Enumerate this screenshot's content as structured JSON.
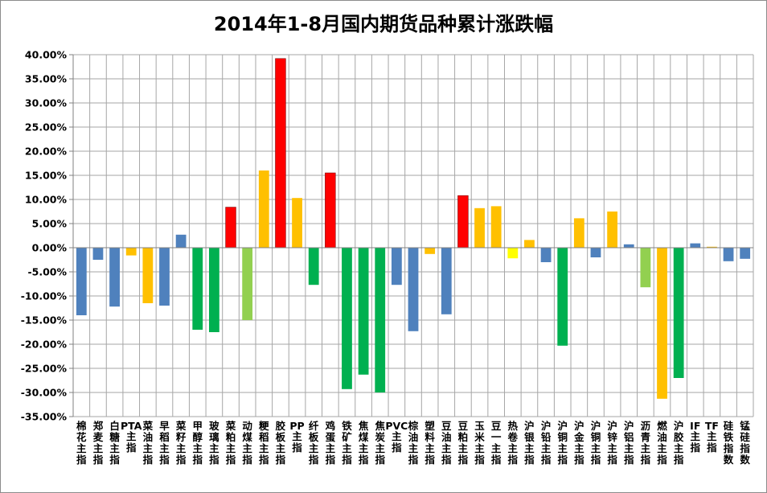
{
  "chart_data": {
    "type": "bar",
    "title": "2014年1-8月国内期货品种累计涨跌幅",
    "xlabel": "",
    "ylabel": "",
    "ylim": [
      -35,
      40
    ],
    "yticks": [
      40,
      35,
      30,
      25,
      20,
      15,
      10,
      5,
      0,
      -5,
      -10,
      -15,
      -20,
      -25,
      -30,
      -35
    ],
    "ytick_labels": [
      "40.00%",
      "35.00%",
      "30.00%",
      "25.00%",
      "20.00%",
      "15.00%",
      "10.00%",
      "5.00%",
      "0.00%",
      "-5.00%",
      "-10.00%",
      "-15.00%",
      "-20.00%",
      "-25.00%",
      "-30.00%",
      "-35.00%"
    ],
    "grid": true,
    "legend": "none",
    "categories": [
      "棉花主指",
      "郑麦主指",
      "白糖主指",
      "PTA主指",
      "菜油主指",
      "早稻主指",
      "菜籽主指",
      "甲醇主指",
      "玻璃主指",
      "菜粕主指",
      "动煤主指",
      "粳稻主指",
      "胶板主指",
      "PP主指",
      "纤板主指",
      "鸡蛋主指",
      "铁矿主指",
      "焦煤主指",
      "焦炭主指",
      "PVC主指",
      "棕油主指",
      "塑料主指",
      "豆油主指",
      "豆粕主指",
      "玉米主指",
      "豆一主指",
      "热卷主指",
      "沪银主指",
      "沪铅主指",
      "沪铜主指",
      "沪金主指",
      "沪铜主指",
      "沪锌主指",
      "沪铝主指",
      "沥青主指",
      "燃油主指",
      "沪胶主指",
      "IF主指",
      "TF主指",
      "硅铁指数",
      "锰硅指数"
    ],
    "values": [
      -14.0,
      -2.5,
      -12.2,
      -1.6,
      -11.5,
      -12.0,
      2.7,
      -17.0,
      -17.5,
      8.4,
      -15.0,
      16.0,
      39.2,
      10.3,
      -7.7,
      15.5,
      -29.3,
      -26.3,
      -30.0,
      -7.7,
      -17.3,
      -1.3,
      -13.8,
      10.8,
      8.2,
      8.6,
      -2.2,
      1.6,
      -3.0,
      -20.3,
      6.1,
      -2.0,
      7.5,
      0.7,
      -8.2,
      -31.3,
      -27.0,
      0.9,
      0.2,
      -2.8,
      -2.3
    ],
    "colors": [
      "#4f81bd",
      "#4f81bd",
      "#4f81bd",
      "#ffc000",
      "#ffc000",
      "#4f81bd",
      "#4f81bd",
      "#00b050",
      "#00b050",
      "#ff0000",
      "#92d050",
      "#ffc000",
      "#ff0000",
      "#ffc000",
      "#00b050",
      "#ff0000",
      "#00b050",
      "#00b050",
      "#00b050",
      "#4f81bd",
      "#4f81bd",
      "#ffc000",
      "#4f81bd",
      "#ff0000",
      "#ffc000",
      "#ffc000",
      "#ffff00",
      "#ffc000",
      "#4f81bd",
      "#00b050",
      "#ffc000",
      "#4f81bd",
      "#ffc000",
      "#4f81bd",
      "#92d050",
      "#ffc000",
      "#00b050",
      "#4f81bd",
      "#ffc000",
      "#4f81bd",
      "#4f81bd"
    ]
  }
}
